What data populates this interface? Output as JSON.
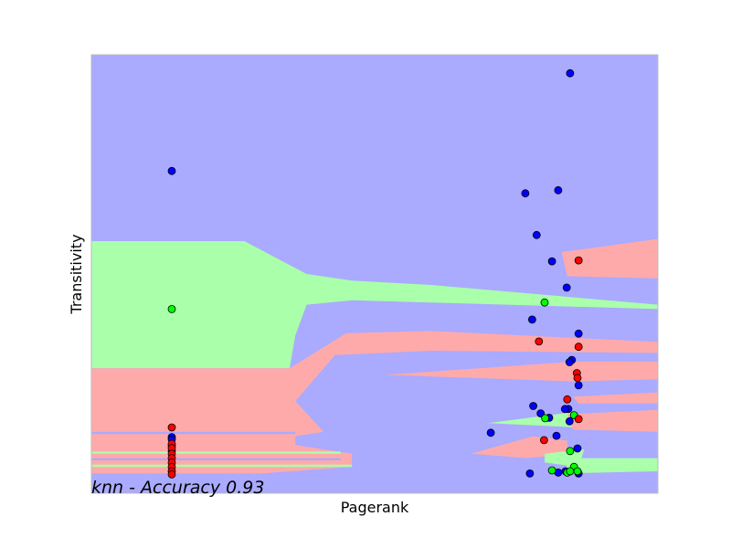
{
  "chart_data": {
    "type": "scatter",
    "title": "",
    "xlabel": "Pagerank",
    "ylabel": "Transitivity",
    "annotation": "knn - Accuracy 0.93",
    "xlim": [
      0,
      1
    ],
    "ylim": [
      0,
      1
    ],
    "show_ticks": false,
    "grid": false,
    "colors": {
      "region_blue": "#AAAAFF",
      "region_green": "#AAFFAA",
      "region_red": "#FFAAAA",
      "point_blue": "#0000FF",
      "point_green": "#00FF00",
      "point_red": "#FF0000",
      "frame": "#BBBBBB"
    },
    "decision_regions": [
      {
        "class": "green",
        "polygon": [
          [
            0,
            0.575
          ],
          [
            0.27,
            0.575
          ],
          [
            0.38,
            0.5
          ],
          [
            0.46,
            0.485
          ],
          [
            0.6,
            0.475
          ],
          [
            1,
            0.43
          ],
          [
            1,
            0.42
          ],
          [
            0.6,
            0.435
          ],
          [
            0.46,
            0.44
          ],
          [
            0.38,
            0.43
          ],
          [
            0.36,
            0.36
          ],
          [
            0.35,
            0.285
          ],
          [
            0,
            0.285
          ]
        ]
      },
      {
        "class": "red",
        "polygon": [
          [
            0,
            0.285
          ],
          [
            0.35,
            0.285
          ],
          [
            0.45,
            0.365
          ],
          [
            0.6,
            0.37
          ],
          [
            1,
            0.345
          ],
          [
            1,
            0.32
          ],
          [
            0.6,
            0.325
          ],
          [
            0.43,
            0.315
          ],
          [
            0.36,
            0.21
          ],
          [
            0.41,
            0.14
          ],
          [
            0.36,
            0.13
          ],
          [
            0.36,
            0.11
          ],
          [
            0.46,
            0.09
          ],
          [
            0.46,
            0.06
          ],
          [
            0.3,
            0.045
          ],
          [
            0,
            0.045
          ]
        ]
      },
      {
        "class": "blue",
        "polygon": [
          [
            0,
            0.135
          ],
          [
            0.36,
            0.135
          ],
          [
            0.36,
            0.14
          ],
          [
            0,
            0.14
          ]
        ]
      },
      {
        "class": "green",
        "polygon": [
          [
            0,
            0.09
          ],
          [
            0.44,
            0.09
          ],
          [
            0.44,
            0.095
          ],
          [
            0,
            0.095
          ]
        ]
      },
      {
        "class": "blue",
        "polygon": [
          [
            0,
            0.075
          ],
          [
            0.44,
            0.075
          ],
          [
            0.44,
            0.08
          ],
          [
            0,
            0.08
          ]
        ]
      },
      {
        "class": "green",
        "polygon": [
          [
            0,
            0.06
          ],
          [
            0.46,
            0.06
          ],
          [
            0.46,
            0.065
          ],
          [
            0,
            0.065
          ]
        ]
      },
      {
        "class": "red",
        "polygon": [
          [
            0.83,
            0.55
          ],
          [
            1,
            0.58
          ],
          [
            1,
            0.49
          ],
          [
            0.84,
            0.495
          ]
        ]
      },
      {
        "class": "red",
        "polygon": [
          [
            0.52,
            0.27
          ],
          [
            0.85,
            0.3
          ],
          [
            1,
            0.3
          ],
          [
            1,
            0.26
          ],
          [
            0.85,
            0.255
          ]
        ]
      },
      {
        "class": "red",
        "polygon": [
          [
            0.85,
            0.22
          ],
          [
            1,
            0.23
          ],
          [
            1,
            0.205
          ],
          [
            0.86,
            0.205
          ]
        ]
      },
      {
        "class": "green",
        "polygon": [
          [
            0.7,
            0.16
          ],
          [
            0.85,
            0.185
          ],
          [
            0.86,
            0.15
          ]
        ]
      },
      {
        "class": "red",
        "polygon": [
          [
            0.84,
            0.18
          ],
          [
            1,
            0.19
          ],
          [
            1,
            0.14
          ],
          [
            0.85,
            0.145
          ]
        ]
      },
      {
        "class": "red",
        "polygon": [
          [
            0.67,
            0.09
          ],
          [
            0.78,
            0.13
          ],
          [
            0.84,
            0.12
          ],
          [
            0.84,
            0.09
          ],
          [
            0.77,
            0.08
          ]
        ]
      },
      {
        "class": "green",
        "polygon": [
          [
            0.8,
            0.09
          ],
          [
            0.87,
            0.1
          ],
          [
            0.86,
            0.06
          ],
          [
            0.8,
            0.07
          ]
        ]
      },
      {
        "class": "green",
        "polygon": [
          [
            0.85,
            0.08
          ],
          [
            1,
            0.08
          ],
          [
            1,
            0.05
          ],
          [
            0.83,
            0.045
          ]
        ]
      }
    ],
    "series": [
      {
        "color": "blue",
        "points": [
          [
            0.845,
            0.958
          ],
          [
            0.142,
            0.735
          ],
          [
            0.766,
            0.684
          ],
          [
            0.824,
            0.691
          ],
          [
            0.786,
            0.589
          ],
          [
            0.813,
            0.529
          ],
          [
            0.839,
            0.469
          ],
          [
            0.778,
            0.396
          ],
          [
            0.86,
            0.364
          ],
          [
            0.848,
            0.304
          ],
          [
            0.844,
            0.299
          ],
          [
            0.86,
            0.246
          ],
          [
            0.78,
            0.199
          ],
          [
            0.793,
            0.182
          ],
          [
            0.808,
            0.172
          ],
          [
            0.842,
            0.192
          ],
          [
            0.836,
            0.192
          ],
          [
            0.844,
            0.164
          ],
          [
            0.705,
            0.138
          ],
          [
            0.821,
            0.131
          ],
          [
            0.858,
            0.102
          ],
          [
            0.774,
            0.045
          ],
          [
            0.824,
            0.047
          ],
          [
            0.837,
            0.05
          ],
          [
            0.86,
            0.045
          ],
          [
            0.142,
            0.128
          ],
          [
            0.142,
            0.123
          ],
          [
            0.142,
            0.109
          ],
          [
            0.142,
            0.096
          ]
        ]
      },
      {
        "color": "green",
        "points": [
          [
            0.142,
            0.42
          ],
          [
            0.8,
            0.435
          ],
          [
            0.801,
            0.171
          ],
          [
            0.852,
            0.178
          ],
          [
            0.845,
            0.096
          ],
          [
            0.852,
            0.06
          ],
          [
            0.813,
            0.052
          ],
          [
            0.84,
            0.047
          ],
          [
            0.845,
            0.05
          ],
          [
            0.858,
            0.05
          ]
        ]
      },
      {
        "color": "red",
        "points": [
          [
            0.86,
            0.531
          ],
          [
            0.79,
            0.346
          ],
          [
            0.86,
            0.334
          ],
          [
            0.857,
            0.274
          ],
          [
            0.858,
            0.263
          ],
          [
            0.84,
            0.214
          ],
          [
            0.86,
            0.169
          ],
          [
            0.799,
            0.121
          ],
          [
            0.142,
            0.15
          ],
          [
            0.142,
            0.113
          ],
          [
            0.142,
            0.103
          ],
          [
            0.142,
            0.09
          ],
          [
            0.142,
            0.08
          ],
          [
            0.142,
            0.07
          ],
          [
            0.142,
            0.06
          ],
          [
            0.142,
            0.05
          ],
          [
            0.142,
            0.043
          ]
        ]
      }
    ]
  }
}
